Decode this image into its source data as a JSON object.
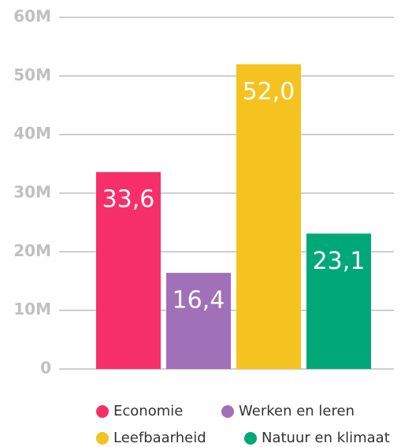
{
  "chart_data": {
    "type": "bar",
    "categories": [
      "Economie",
      "Werken en leren",
      "Leefbaarheid",
      "Natuur en klimaat"
    ],
    "values": [
      33.6,
      16.4,
      52.0,
      23.1
    ],
    "value_labels": [
      "33,6",
      "16,4",
      "52,0",
      "23,1"
    ],
    "colors": [
      "#f72f68",
      "#a070b8",
      "#f5c21f",
      "#00a878"
    ],
    "ylim": [
      0,
      60
    ],
    "yticks": [
      0,
      {
        "value": 10,
        "label": "10M"
      },
      {
        "value": 20,
        "label": "20M"
      },
      {
        "value": 30,
        "label": "30M"
      },
      {
        "value": 40,
        "label": "40M"
      },
      {
        "value": 50,
        "label": "50M"
      },
      {
        "value": 60,
        "label": "60M"
      }
    ],
    "grid": true
  }
}
